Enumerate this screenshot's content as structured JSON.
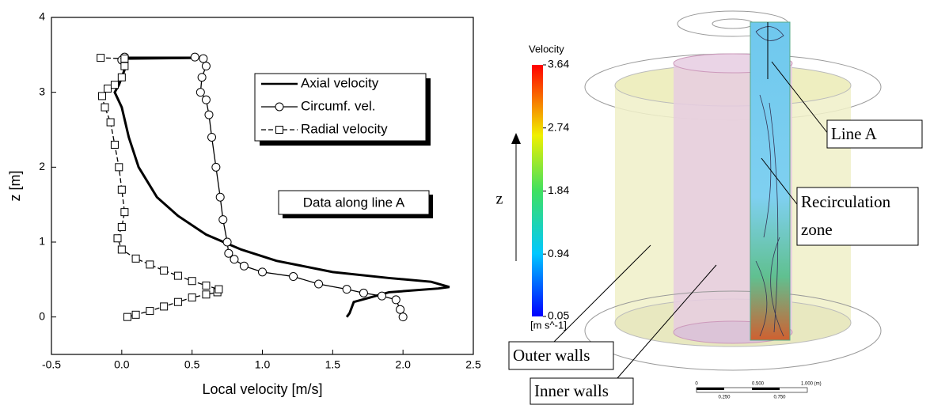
{
  "chart_data": {
    "type": "line",
    "xlabel": "Local velocity [m/s]",
    "ylabel": "z [m]",
    "xlim": [
      -0.5,
      2.5
    ],
    "ylim": [
      -0.5,
      4
    ],
    "xticks": [
      -0.5,
      {
        "value": 0,
        "label": "0.0"
      },
      0.5,
      {
        "value": 1,
        "label": "1.0"
      },
      1.5,
      {
        "value": 2,
        "label": "2.0"
      },
      2.5
    ],
    "yticks": [
      0,
      1,
      2,
      3,
      4
    ],
    "annotation": "Data along line A",
    "series": [
      {
        "name": "Axial velocity",
        "color": "#000000",
        "marker": "none",
        "x": [
          1.6,
          1.62,
          1.65,
          1.9,
          2.25,
          2.33,
          2.2,
          1.9,
          1.5,
          1.1,
          0.85,
          0.6,
          0.4,
          0.25,
          0.12,
          0.05,
          0.0,
          -0.05,
          -0.02,
          0.02,
          0.03,
          0.55
        ],
        "y": [
          0,
          0.05,
          0.2,
          0.33,
          0.38,
          0.4,
          0.47,
          0.52,
          0.6,
          0.75,
          0.9,
          1.1,
          1.35,
          1.6,
          2.0,
          2.4,
          2.8,
          3.0,
          3.1,
          3.3,
          3.45,
          3.46
        ]
      },
      {
        "name": "Circumf. vel.",
        "color": "#000000",
        "marker": "circle",
        "x": [
          2.0,
          1.98,
          1.95,
          1.85,
          1.72,
          1.6,
          1.4,
          1.22,
          1.0,
          0.87,
          0.8,
          0.76,
          0.75,
          0.72,
          0.7,
          0.67,
          0.64,
          0.62,
          0.6,
          0.56,
          0.57,
          0.6,
          0.58,
          0.52,
          0.02,
          0.0
        ],
        "y": [
          0,
          0.1,
          0.23,
          0.28,
          0.32,
          0.37,
          0.44,
          0.54,
          0.6,
          0.68,
          0.77,
          0.85,
          1.0,
          1.3,
          1.6,
          2.0,
          2.4,
          2.7,
          2.9,
          3.0,
          3.2,
          3.35,
          3.45,
          3.47,
          3.47,
          3.43
        ]
      },
      {
        "name": "Radial velocity",
        "color": "#000000",
        "marker": "square",
        "x": [
          0.04,
          0.1,
          0.2,
          0.3,
          0.4,
          0.5,
          0.6,
          0.68,
          0.69,
          0.6,
          0.5,
          0.4,
          0.3,
          0.2,
          0.1,
          0.0,
          -0.03,
          0.0,
          0.02,
          0.0,
          -0.02,
          -0.05,
          -0.08,
          -0.12,
          -0.14,
          -0.1,
          -0.05,
          0.0,
          0.02,
          0.02,
          -0.15
        ],
        "y": [
          0,
          0.03,
          0.08,
          0.14,
          0.2,
          0.26,
          0.3,
          0.33,
          0.37,
          0.42,
          0.48,
          0.55,
          0.62,
          0.7,
          0.78,
          0.9,
          1.05,
          1.2,
          1.4,
          1.7,
          2.0,
          2.3,
          2.6,
          2.8,
          2.95,
          3.05,
          3.1,
          3.2,
          3.35,
          3.45,
          3.46
        ]
      }
    ]
  },
  "render": {
    "colorbar": {
      "title": "Velocity",
      "ticks": [
        3.64,
        2.74,
        1.84,
        0.94,
        0.05
      ],
      "unit": "[m s^-1]"
    },
    "axis_label": "z",
    "annotations": {
      "line_a": "Line A",
      "recirculation": [
        "Recirculation",
        "zone"
      ],
      "outer": "Outer walls",
      "inner": "Inner walls"
    },
    "scale_bar": {
      "top": [
        "0",
        "0.500",
        "1.000 (m)"
      ],
      "bottom": [
        "0.250",
        "0.750"
      ]
    }
  }
}
